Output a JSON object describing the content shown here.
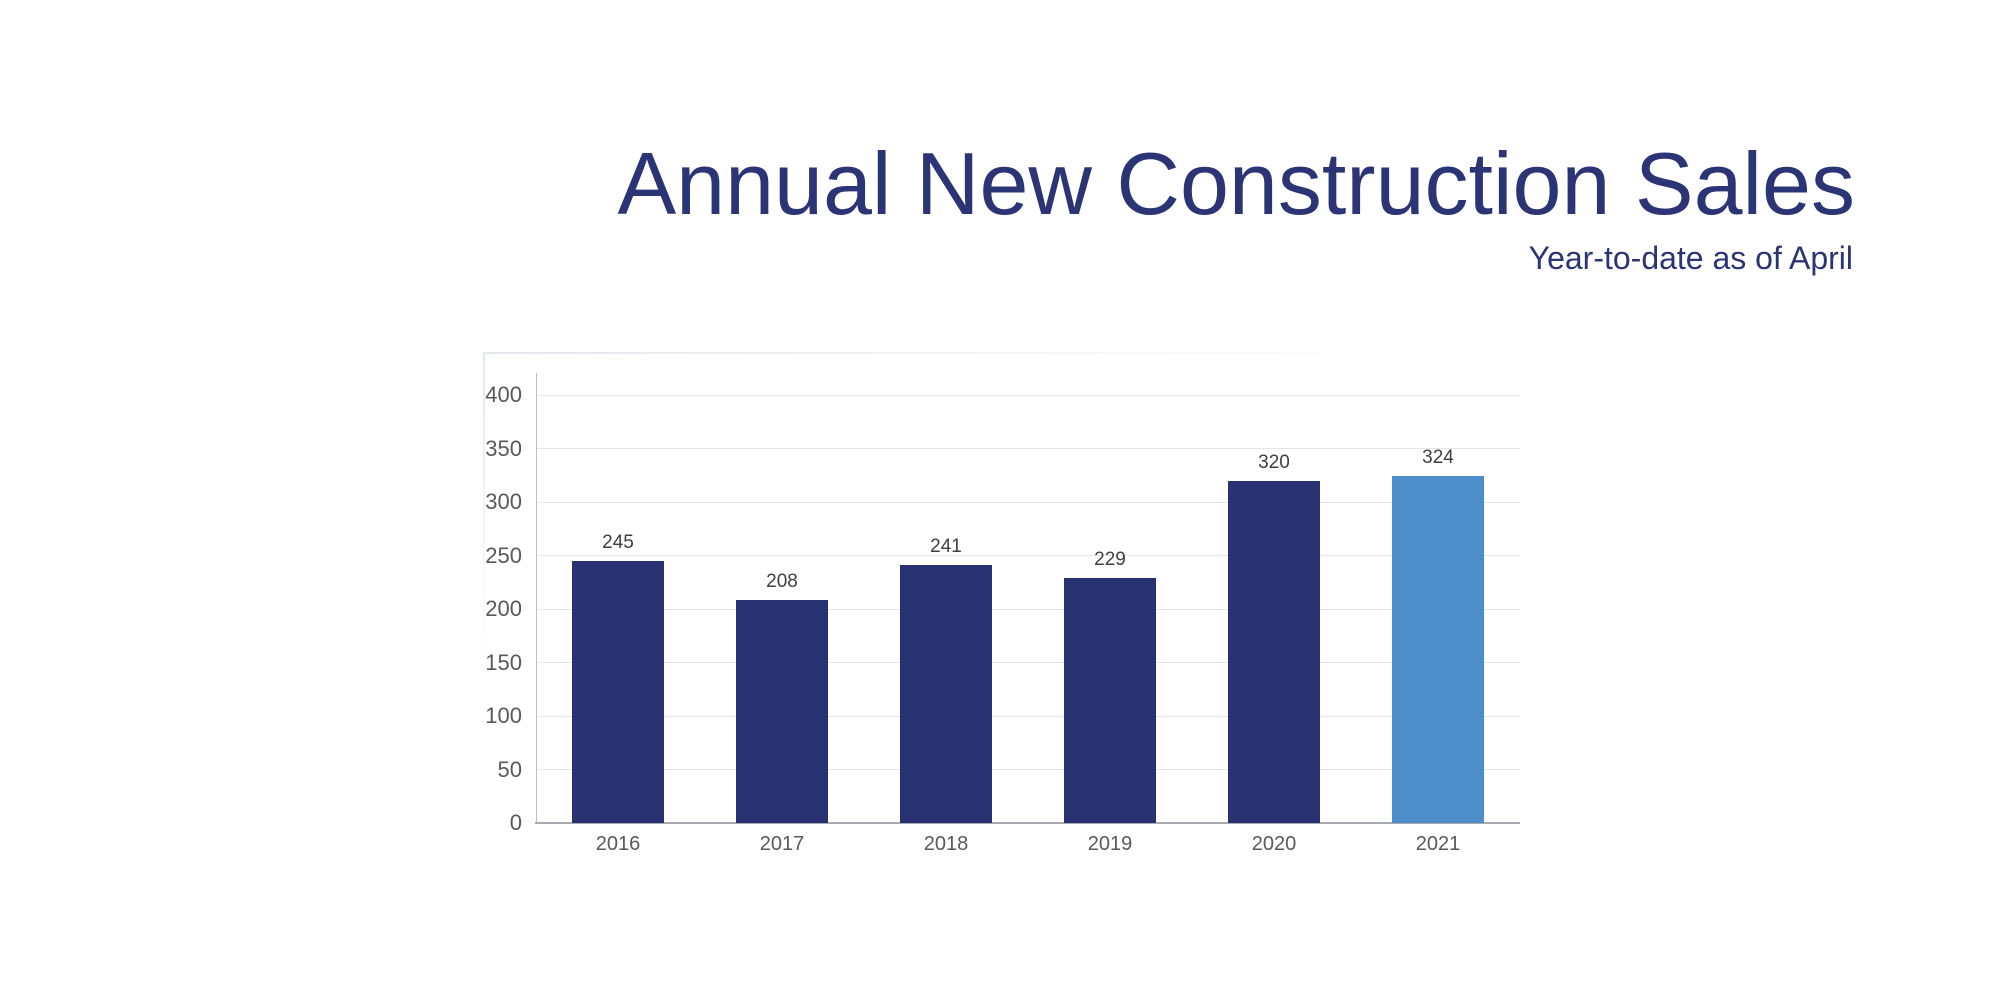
{
  "header": {
    "title": "Annual New Construction Sales",
    "subtitle": "Year-to-date as of April",
    "title_color": "#2b3575"
  },
  "chart_data": {
    "type": "bar",
    "title": "Annual New Construction Sales",
    "subtitle": "Year-to-date as of April",
    "categories": [
      "2016",
      "2017",
      "2018",
      "2019",
      "2020",
      "2021"
    ],
    "values": [
      245,
      208,
      241,
      229,
      320,
      324
    ],
    "data_labels": [
      "245",
      "208",
      "241",
      "229",
      "320",
      "324"
    ],
    "highlight_index": 5,
    "xlabel": "",
    "ylabel": "",
    "ylim": [
      0,
      400
    ],
    "yticks": [
      0,
      50,
      100,
      150,
      200,
      250,
      300,
      350,
      400
    ],
    "grid": true,
    "legend": false,
    "colors": {
      "bar": "#283272",
      "highlight": "#4d8dca",
      "grid": "#e2e6eb",
      "x_axis_line": "#a7abaf",
      "y_axis_line": "#bcc0c4",
      "tick_label": "#595959",
      "value_label": "#3f3f3f"
    }
  }
}
